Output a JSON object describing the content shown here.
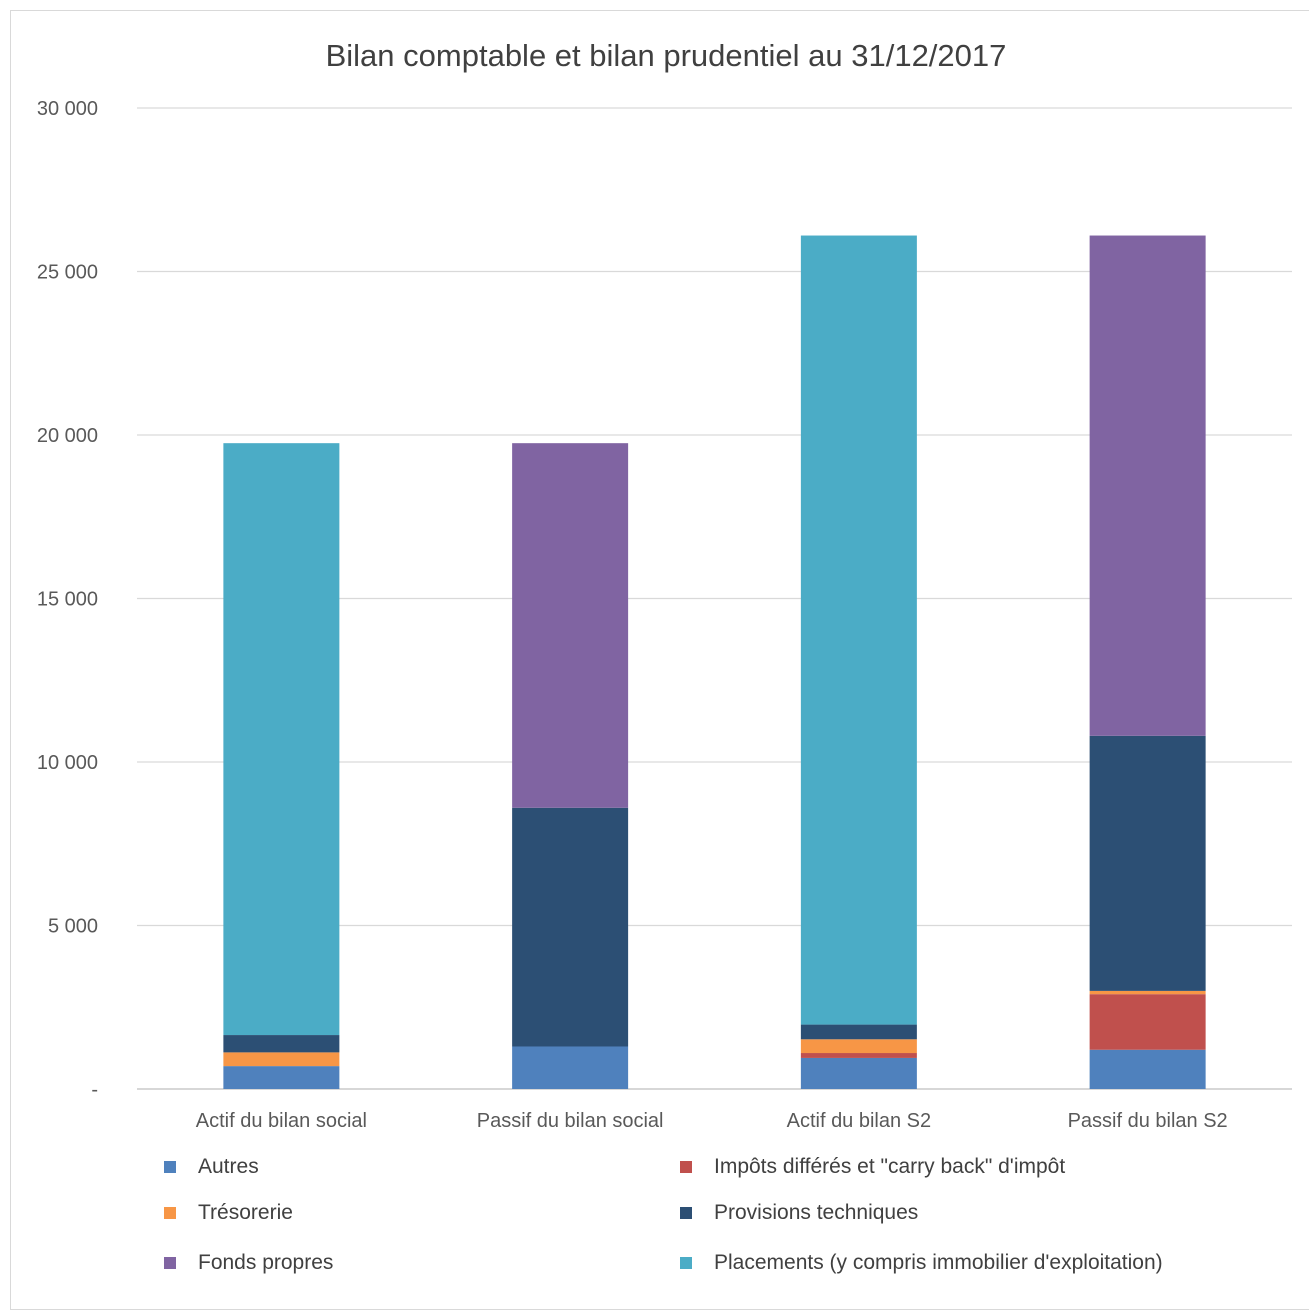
{
  "chart_data": {
    "type": "bar",
    "stacked": true,
    "title": "Bilan comptable et bilan prudentiel au 31/12/2017",
    "xlabel": "",
    "ylabel": "",
    "ylim": [
      0,
      30000
    ],
    "grid": true,
    "legend_position": "bottom",
    "categories": [
      "Actif du bilan social",
      "Passif du bilan social",
      "Actif du bilan S2",
      "Passif du bilan S2"
    ],
    "yticks": [
      {
        "value": 0,
        "label": "-"
      },
      {
        "value": 5000,
        "label": "5 000"
      },
      {
        "value": 10000,
        "label": "10 000"
      },
      {
        "value": 15000,
        "label": "15 000"
      },
      {
        "value": 20000,
        "label": "20 000"
      },
      {
        "value": 25000,
        "label": "25 000"
      },
      {
        "value": 30000,
        "label": "30 000"
      }
    ],
    "series": [
      {
        "name": "Autres",
        "color": "#4f81bd",
        "values": [
          700,
          1300,
          950,
          1200
        ]
      },
      {
        "name": "Impôts différés et \"carry back\" d'impôt",
        "color": "#c0504d",
        "values": [
          0,
          0,
          150,
          1700
        ]
      },
      {
        "name": "Trésorerie",
        "color": "#f79646",
        "values": [
          420,
          0,
          420,
          100
        ]
      },
      {
        "name": "Provisions techniques",
        "color": "#2c4f74",
        "values": [
          530,
          7300,
          450,
          7800
        ]
      },
      {
        "name": "Fonds propres",
        "color": "#8064a2",
        "values": [
          0,
          11150,
          0,
          15300
        ]
      },
      {
        "name": "Placements (y compris immobilier d'exploitation)",
        "color": "#4bacc6",
        "values": [
          18100,
          0,
          24130,
          0
        ]
      }
    ]
  }
}
